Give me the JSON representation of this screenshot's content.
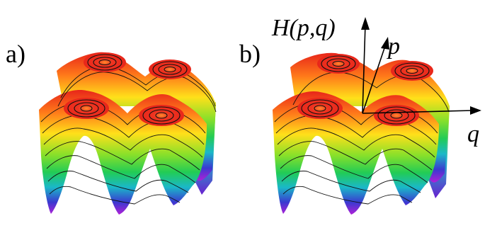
{
  "panels": [
    {
      "label": "a)"
    },
    {
      "label": "b)"
    }
  ],
  "axes": {
    "vertical": "H(p,q)",
    "depth": "p",
    "horizontal": "q"
  },
  "colors": {
    "peak": "#e8261a",
    "mid": "#ffe01a",
    "low_green": "#33cc33",
    "low_cyan": "#1ab8c8",
    "trough": "#4020c8",
    "base": "#b020d8",
    "contour": "#111111"
  }
}
